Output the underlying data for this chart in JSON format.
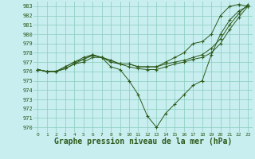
{
  "bg_color": "#c8eef0",
  "grid_color": "#88ccbb",
  "line_color": "#2d5a1b",
  "xlabel": "Graphe pression niveau de la mer (hPa)",
  "xlabel_fontsize": 7,
  "ylim": [
    969.5,
    983.5
  ],
  "yticks": [
    970,
    971,
    972,
    973,
    974,
    975,
    976,
    977,
    978,
    979,
    980,
    981,
    982,
    983
  ],
  "xticks": [
    0,
    1,
    2,
    3,
    4,
    5,
    6,
    7,
    8,
    9,
    10,
    11,
    12,
    13,
    14,
    15,
    16,
    17,
    18,
    19,
    20,
    21,
    22,
    23
  ],
  "xlim": [
    -0.5,
    23.5
  ],
  "line1_x": [
    0,
    1,
    2,
    3,
    4,
    5,
    6,
    7,
    8,
    9,
    10,
    11,
    12,
    13,
    14,
    15,
    16,
    17,
    18,
    19,
    20,
    21,
    22,
    23
  ],
  "line1_y": [
    976.2,
    976.0,
    976.0,
    976.5,
    977.0,
    977.3,
    977.7,
    977.5,
    976.5,
    976.2,
    975.0,
    973.5,
    971.2,
    970.0,
    971.5,
    972.5,
    973.5,
    974.5,
    975.0,
    977.8,
    980.0,
    981.5,
    982.5,
    983.0
  ],
  "line2_x": [
    0,
    1,
    2,
    3,
    4,
    5,
    6,
    7,
    8,
    9,
    10,
    11,
    12,
    13,
    14,
    15,
    16,
    17,
    18,
    19,
    20,
    21,
    22,
    23
  ],
  "line2_y": [
    976.2,
    976.0,
    976.0,
    976.3,
    976.8,
    977.0,
    977.5,
    977.5,
    977.0,
    976.8,
    976.5,
    976.3,
    976.2,
    976.2,
    976.5,
    976.8,
    977.0,
    977.3,
    977.5,
    978.0,
    979.0,
    980.5,
    981.8,
    983.0
  ],
  "line3_x": [
    0,
    1,
    2,
    3,
    4,
    5,
    6,
    7,
    8,
    9,
    10,
    11,
    12,
    13,
    14,
    15,
    16,
    17,
    18,
    19,
    20,
    21,
    22,
    23
  ],
  "line3_y": [
    976.2,
    976.0,
    976.0,
    976.3,
    976.8,
    977.3,
    977.8,
    977.5,
    977.2,
    976.8,
    976.8,
    976.5,
    976.5,
    976.5,
    976.8,
    977.0,
    977.2,
    977.5,
    977.8,
    978.5,
    979.5,
    981.0,
    982.2,
    983.2
  ],
  "line4_x": [
    0,
    1,
    2,
    3,
    4,
    5,
    6,
    7,
    8,
    9,
    10,
    11,
    12,
    13,
    14,
    15,
    16,
    17,
    18,
    19,
    20,
    21,
    22,
    23
  ],
  "line4_y": [
    976.2,
    976.0,
    976.0,
    976.5,
    977.0,
    977.5,
    977.8,
    977.5,
    977.2,
    976.8,
    976.8,
    976.5,
    976.5,
    976.5,
    977.0,
    977.5,
    978.0,
    979.0,
    979.2,
    980.0,
    982.0,
    983.0,
    983.2,
    983.0
  ]
}
